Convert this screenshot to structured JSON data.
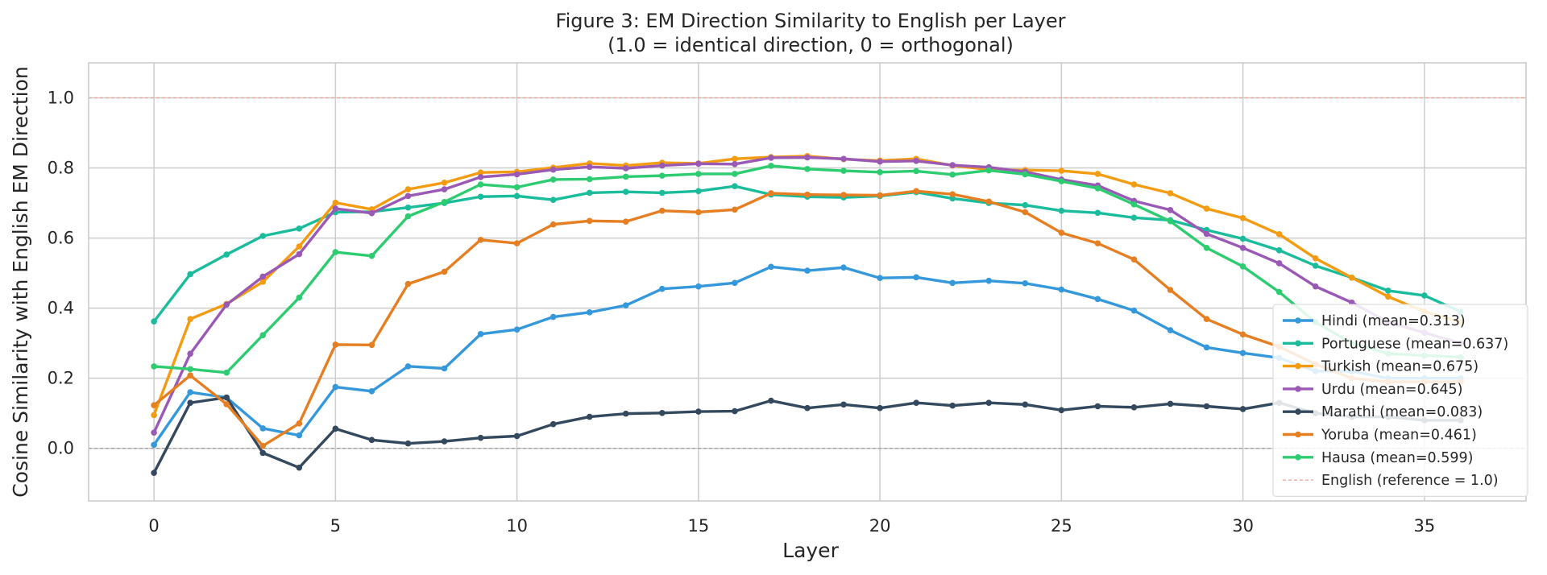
{
  "chart_data": {
    "type": "line",
    "title": "Figure 3: EM Direction Similarity to English per Layer",
    "subtitle": "(1.0 = identical direction, 0 = orthogonal)",
    "xlabel": "Layer",
    "ylabel": "Cosine Similarity with English EM Direction",
    "xlim": [
      -1.8,
      37.8
    ],
    "ylim": [
      -0.15,
      1.1
    ],
    "xticks": [
      0,
      5,
      10,
      15,
      20,
      25,
      30,
      35
    ],
    "yticks": [
      0.0,
      0.2,
      0.4,
      0.6,
      0.8,
      1.0
    ],
    "xtick_labels": [
      "0",
      "5",
      "10",
      "15",
      "20",
      "25",
      "30",
      "35"
    ],
    "ytick_labels": [
      "0.0",
      "0.2",
      "0.4",
      "0.6",
      "0.8",
      "1.0"
    ],
    "grid": true,
    "legend_position": "lower-right",
    "x": [
      0,
      1,
      2,
      3,
      4,
      5,
      6,
      7,
      8,
      9,
      10,
      11,
      12,
      13,
      14,
      15,
      16,
      17,
      18,
      19,
      20,
      21,
      22,
      23,
      24,
      25,
      26,
      27,
      28,
      29,
      30,
      31,
      32,
      33,
      34,
      35,
      36
    ],
    "series": [
      {
        "name": "Hindi (mean=0.313)",
        "color": "#3498db",
        "values": [
          0.01,
          0.16,
          0.145,
          0.057,
          0.037,
          0.175,
          0.163,
          0.234,
          0.228,
          0.326,
          0.339,
          0.375,
          0.388,
          0.408,
          0.455,
          0.462,
          0.472,
          0.518,
          0.507,
          0.516,
          0.486,
          0.488,
          0.472,
          0.478,
          0.471,
          0.453,
          0.426,
          0.393,
          0.337,
          0.288,
          0.272,
          0.258,
          0.22,
          0.22,
          0.2,
          0.2,
          0.2
        ]
      },
      {
        "name": "Portuguese (mean=0.637)",
        "color": "#1abc9c",
        "values": [
          0.362,
          0.497,
          0.553,
          0.606,
          0.627,
          0.674,
          0.675,
          0.687,
          0.7,
          0.718,
          0.72,
          0.709,
          0.729,
          0.732,
          0.729,
          0.734,
          0.748,
          0.724,
          0.718,
          0.716,
          0.72,
          0.731,
          0.713,
          0.7,
          0.694,
          0.678,
          0.672,
          0.658,
          0.651,
          0.623,
          0.598,
          0.565,
          0.521,
          0.487,
          0.45,
          0.436,
          0.39
        ]
      },
      {
        "name": "Turkish (mean=0.675)",
        "color": "#f39c12",
        "values": [
          0.095,
          0.369,
          0.412,
          0.475,
          0.576,
          0.701,
          0.682,
          0.739,
          0.758,
          0.787,
          0.789,
          0.801,
          0.813,
          0.807,
          0.815,
          0.813,
          0.826,
          0.831,
          0.834,
          0.825,
          0.821,
          0.826,
          0.807,
          0.795,
          0.794,
          0.792,
          0.783,
          0.753,
          0.728,
          0.684,
          0.657,
          0.611,
          0.542,
          0.487,
          0.433,
          0.39,
          0.36
        ]
      },
      {
        "name": "Urdu (mean=0.645)",
        "color": "#9b59b6",
        "values": [
          0.045,
          0.27,
          0.41,
          0.49,
          0.554,
          0.684,
          0.671,
          0.72,
          0.739,
          0.774,
          0.782,
          0.795,
          0.803,
          0.799,
          0.807,
          0.812,
          0.811,
          0.829,
          0.83,
          0.826,
          0.818,
          0.82,
          0.808,
          0.802,
          0.789,
          0.767,
          0.75,
          0.706,
          0.68,
          0.612,
          0.572,
          0.528,
          0.462,
          0.416,
          0.36,
          0.33,
          0.3
        ]
      },
      {
        "name": "Marathi (mean=0.083)",
        "color": "#34495e",
        "values": [
          -0.07,
          0.13,
          0.145,
          -0.013,
          -0.055,
          0.056,
          0.024,
          0.014,
          0.02,
          0.03,
          0.035,
          0.069,
          0.09,
          0.099,
          0.101,
          0.105,
          0.106,
          0.136,
          0.115,
          0.125,
          0.115,
          0.13,
          0.122,
          0.13,
          0.125,
          0.109,
          0.12,
          0.117,
          0.127,
          0.12,
          0.112,
          0.13,
          0.1,
          0.09,
          0.09,
          0.08,
          0.08
        ]
      },
      {
        "name": "Yoruba (mean=0.461)",
        "color": "#e67e22",
        "values": [
          0.123,
          0.208,
          0.126,
          0.007,
          0.071,
          0.296,
          0.295,
          0.469,
          0.504,
          0.595,
          0.585,
          0.639,
          0.649,
          0.647,
          0.678,
          0.674,
          0.681,
          0.728,
          0.724,
          0.723,
          0.722,
          0.734,
          0.725,
          0.704,
          0.674,
          0.615,
          0.585,
          0.539,
          0.452,
          0.369,
          0.325,
          0.29,
          0.24,
          0.2,
          0.19,
          0.19,
          0.19
        ]
      },
      {
        "name": "Hausa (mean=0.599)",
        "color": "#2ecc71",
        "values": [
          0.234,
          0.226,
          0.216,
          0.323,
          0.43,
          0.56,
          0.549,
          0.662,
          0.703,
          0.753,
          0.745,
          0.767,
          0.768,
          0.775,
          0.778,
          0.783,
          0.783,
          0.806,
          0.797,
          0.792,
          0.788,
          0.791,
          0.781,
          0.793,
          0.782,
          0.762,
          0.742,
          0.696,
          0.648,
          0.572,
          0.519,
          0.446,
          0.36,
          0.3,
          0.27,
          0.265,
          0.26
        ]
      }
    ],
    "reference_line": {
      "name": "English (reference = 1.0)",
      "y": 1.0,
      "color": "#e8a090"
    },
    "zero_line": {
      "y": 0.0,
      "color": "#999999"
    }
  }
}
